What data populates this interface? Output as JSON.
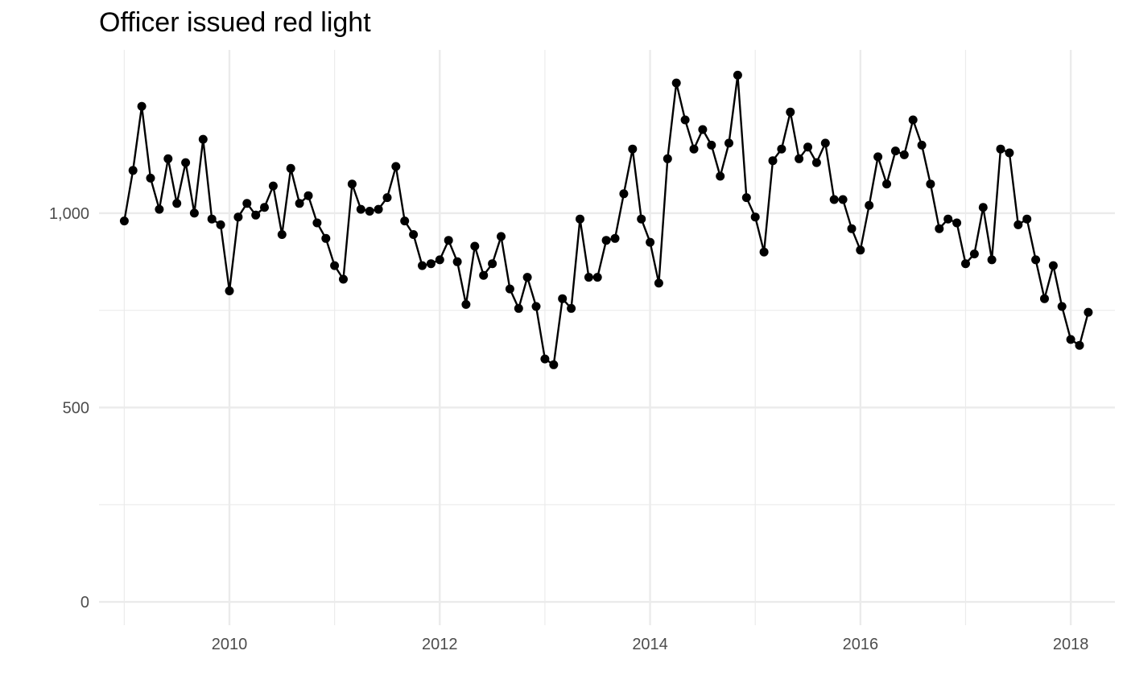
{
  "chart_data": {
    "type": "line",
    "title": "Officer issued red light",
    "xlabel": "",
    "ylabel": "",
    "xlim": [
      2008.76,
      2018.42
    ],
    "ylim": [
      -60,
      1420
    ],
    "x_ticks": [
      {
        "value": 2010,
        "label": "2010"
      },
      {
        "value": 2012,
        "label": "2012"
      },
      {
        "value": 2014,
        "label": "2014"
      },
      {
        "value": 2016,
        "label": "2016"
      },
      {
        "value": 2018,
        "label": "2018"
      }
    ],
    "y_ticks": [
      {
        "value": 0,
        "label": "0"
      },
      {
        "value": 500,
        "label": "500"
      },
      {
        "value": 1000,
        "label": "1,000"
      }
    ],
    "grid": true,
    "line_color": "#000000",
    "series": [
      {
        "start": "2009-01",
        "frequency": "monthly",
        "values": [
          980,
          1110,
          1275,
          1090,
          1010,
          1140,
          1025,
          1130,
          1000,
          1190,
          985,
          970,
          800,
          990,
          1025,
          995,
          1015,
          1070,
          945,
          1115,
          1025,
          1045,
          975,
          935,
          865,
          830,
          1075,
          1010,
          1005,
          1010,
          1040,
          1120,
          980,
          945,
          865,
          870,
          880,
          930,
          875,
          765,
          915,
          840,
          870,
          940,
          805,
          755,
          835,
          760,
          625,
          610,
          780,
          755,
          985,
          835,
          835,
          930,
          935,
          1050,
          1165,
          985,
          925,
          820,
          1140,
          1335,
          1240,
          1165,
          1215,
          1175,
          1095,
          1180,
          1355,
          1040,
          990,
          900,
          1135,
          1165,
          1260,
          1140,
          1170,
          1130,
          1180,
          1035,
          1035,
          960,
          905,
          1020,
          1145,
          1075,
          1160,
          1150,
          1240,
          1175,
          1075,
          960,
          985,
          975,
          870,
          895,
          1015,
          880,
          1165,
          1155,
          970,
          985,
          880,
          780,
          865,
          760,
          675,
          660,
          745
        ]
      }
    ]
  }
}
